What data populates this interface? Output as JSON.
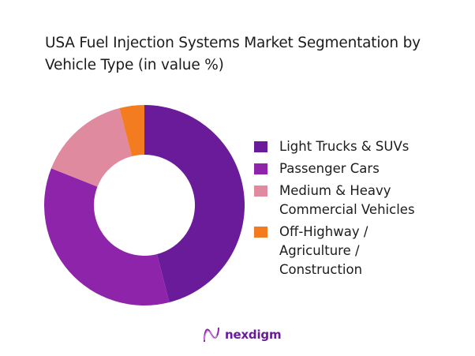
{
  "title": "USA Fuel Injection Systems Market Segmentation by Vehicle Type (in value %)",
  "chart_data": {
    "type": "pie",
    "subtype": "donut",
    "title": "USA Fuel Injection Systems Market Segmentation by Vehicle Type (in value %)",
    "categories": [
      "Light Trucks & SUVs",
      "Passenger Cars",
      "Medium & Heavy Commercial Vehicles",
      "Off-Highway / Agriculture / Construction"
    ],
    "values": [
      46,
      35,
      15,
      4
    ],
    "colors": [
      "#6a1b9a",
      "#8e24aa",
      "#e08aa0",
      "#f47c20"
    ],
    "legend_position": "right",
    "start_angle": "top, clockwise"
  },
  "legend": [
    {
      "label": "Light Trucks & SUVs",
      "color": "#6a1b9a"
    },
    {
      "label": "Passenger Cars",
      "color": "#8e24aa"
    },
    {
      "label": "Medium & Heavy Commercial Vehicles",
      "color": "#e08aa0"
    },
    {
      "label": "Off-Highway / Agriculture / Construction",
      "color": "#f47c20"
    }
  ],
  "logo": {
    "text": "nexdigm",
    "icon": "nexdigm-wave-logo-icon"
  }
}
